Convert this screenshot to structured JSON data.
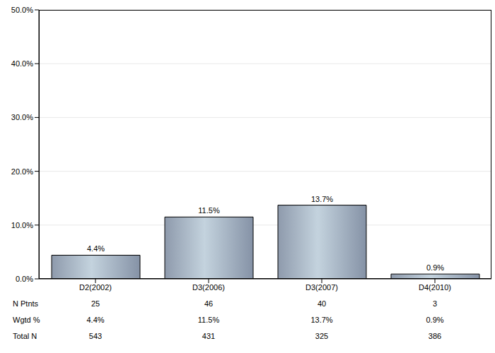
{
  "chart_data": {
    "type": "bar",
    "categories": [
      "D2(2002)",
      "D3(2006)",
      "D3(2007)",
      "D4(2010)"
    ],
    "values": [
      4.4,
      11.5,
      13.7,
      0.9
    ],
    "value_labels": [
      "4.4%",
      "11.5%",
      "13.7%",
      "0.9%"
    ],
    "data_labels": true,
    "color": "#c4d3de",
    "ylim": [
      0,
      50
    ],
    "yticks": [
      {
        "value": 0,
        "label": "0.0%"
      },
      {
        "value": 10,
        "label": "10.0%"
      },
      {
        "value": 20,
        "label": "20.0%"
      },
      {
        "value": 30,
        "label": "30.0%"
      },
      {
        "value": 40,
        "label": "40.0%"
      },
      {
        "value": 50,
        "label": "50.0%"
      }
    ],
    "grid": true,
    "table": {
      "rows": [
        {
          "label": "N Ptnts",
          "values": [
            "25",
            "46",
            "40",
            "3"
          ]
        },
        {
          "label": "Wgtd %",
          "values": [
            "4.4%",
            "11.5%",
            "13.7%",
            "0.9%"
          ]
        },
        {
          "label": "Total N",
          "values": [
            "543",
            "431",
            "325",
            "386"
          ]
        }
      ]
    }
  }
}
